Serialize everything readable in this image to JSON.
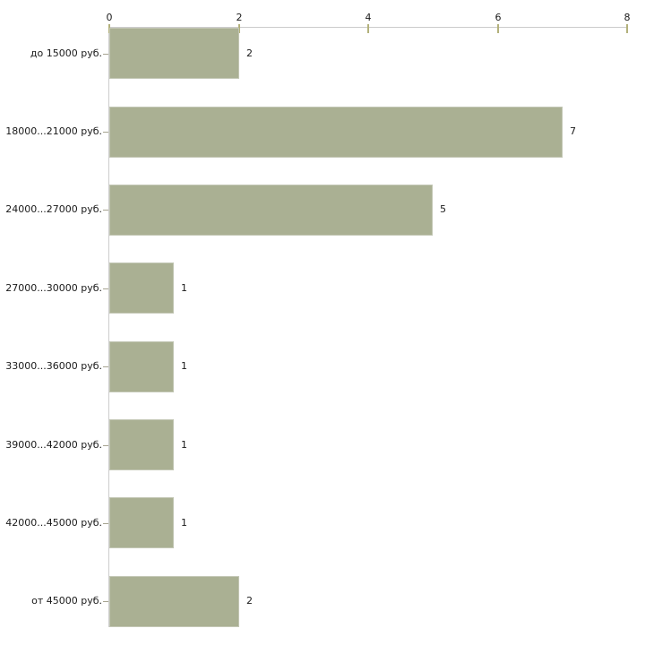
{
  "chart_data": {
    "type": "bar",
    "orientation": "horizontal",
    "categories": [
      "до 15000 руб.",
      "18000...21000 руб.",
      "24000...27000 руб.",
      "27000...30000 руб.",
      "33000...36000 руб.",
      "39000...42000 руб.",
      "42000...45000 руб.",
      "от 45000 руб."
    ],
    "values": [
      2,
      7,
      5,
      1,
      1,
      1,
      1,
      2
    ],
    "value_labels": [
      "2",
      "7",
      "5",
      "1",
      "1",
      "1",
      "1",
      "2"
    ],
    "x_ticks": [
      0,
      2,
      4,
      6,
      8
    ],
    "x_tick_labels": [
      "0",
      "2",
      "4",
      "6",
      "8"
    ],
    "xlim": [
      0,
      8
    ],
    "grid": false,
    "legend": null,
    "colors": {
      "bar_fill": "#aab093",
      "bar_edge": "#c3c7b5",
      "axis_line": "#cccccc",
      "x_tick_mark": "#b3b17b",
      "category_tick_mark": "#a6a390",
      "text": "#1a1a1a",
      "background": "#ffffff"
    }
  }
}
